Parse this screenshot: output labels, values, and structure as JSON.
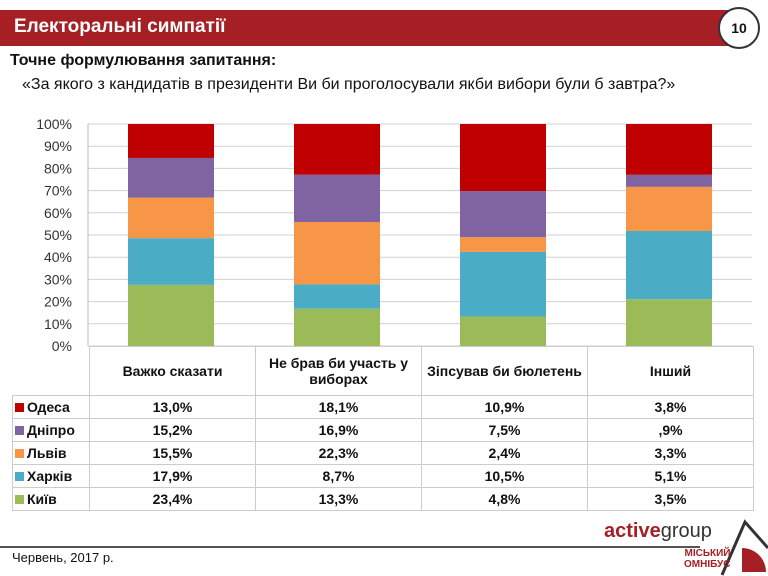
{
  "header": {
    "title": "Електоральні симпатії",
    "page_number": "10"
  },
  "subtitle": "Точне формулювання запитання:",
  "question": "«За якого з кандидатів в президенти Ви би проголосували якби вибори були б завтра?»",
  "chart_data": {
    "type": "bar",
    "stacked": "100%",
    "categories": [
      "Важко сказати",
      "Не брав би участь у виборах",
      "Зіпсував би бюлетень",
      "Інший"
    ],
    "y_ticks": [
      "0%",
      "10%",
      "20%",
      "30%",
      "40%",
      "50%",
      "60%",
      "70%",
      "80%",
      "90%",
      "100%"
    ],
    "ylim": [
      0,
      100
    ],
    "series": [
      {
        "name": "Київ",
        "color": "#9bbb59",
        "values": [
          23.4,
          13.3,
          4.8,
          3.5
        ],
        "labels": [
          "23,4%",
          "13,3%",
          "4,8%",
          "3,5%"
        ]
      },
      {
        "name": "Харків",
        "color": "#4bacc6",
        "values": [
          17.9,
          8.7,
          10.5,
          5.1
        ],
        "labels": [
          "17,9%",
          "8,7%",
          "10,5%",
          "5,1%"
        ]
      },
      {
        "name": "Львів",
        "color": "#f79646",
        "values": [
          15.5,
          22.3,
          2.4,
          3.3
        ],
        "labels": [
          "15,5%",
          "22,3%",
          "2,4%",
          "3,3%"
        ]
      },
      {
        "name": "Дніпро",
        "color": "#8064a2",
        "values": [
          15.2,
          16.9,
          7.5,
          0.9
        ],
        "labels": [
          "15,2%",
          "16,9%",
          "7,5%",
          ",9%"
        ]
      },
      {
        "name": "Одеса",
        "color": "#c00000",
        "values": [
          13.0,
          18.1,
          10.9,
          3.8
        ],
        "labels": [
          "13,0%",
          "18,1%",
          "10,9%",
          "3,8%"
        ]
      }
    ]
  },
  "footer": {
    "date": "Червень, 2017 р.",
    "logo_active": "active",
    "logo_group": "group",
    "logo_omnibus_1": "МІСЬКИЙ",
    "logo_omnibus_2": "ОМНІБУС"
  }
}
